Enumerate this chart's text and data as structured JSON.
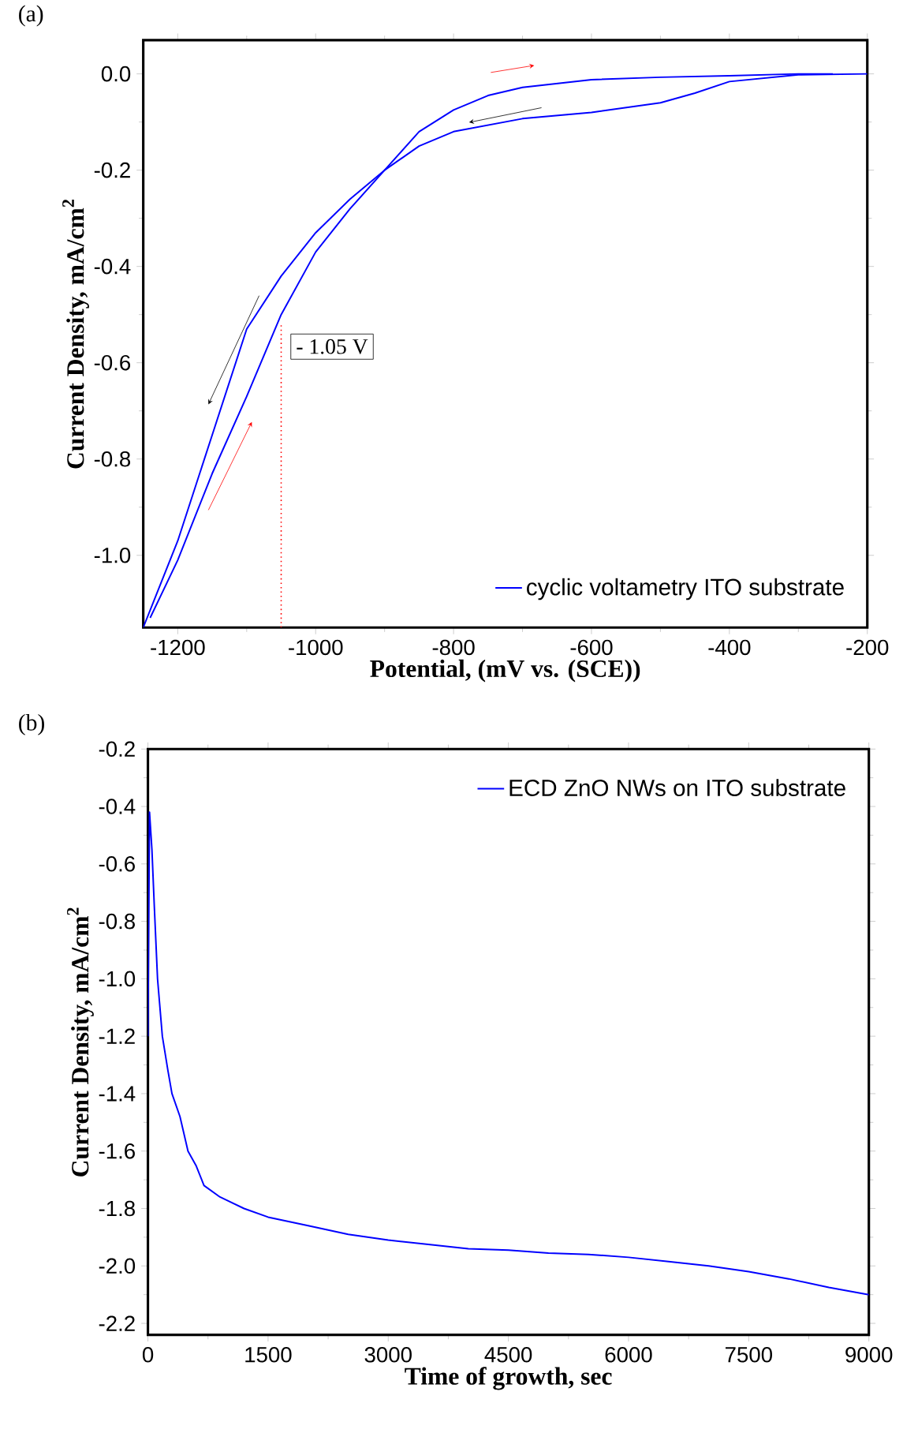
{
  "chart_data": [
    {
      "type": "line",
      "xlabel": "Potential, (mV vs. (SCE))",
      "ylabel": "Current Density, mA/cm$^{2}$",
      "legend": "bottom right",
      "annotations": [
        "(a)"
      ],
      "xlim": [
        -1250,
        -200
      ],
      "xticks": [
        -1200,
        -1000,
        -800,
        -600,
        -400,
        -200
      ],
      "ylim": [
        -1.15,
        0.07
      ],
      "yticks": [
        {
          "value": 0,
          "label": "0.0"
        },
        -0.2,
        -0.4,
        -0.6,
        -0.8,
        {
          "value": -1,
          "label": "-1.0"
        }
      ],
      "ref_lines": [
        {
          "axis": "x",
          "value": -1050,
          "label": "- 1.05 V",
          "color": "#ff0000",
          "line_style": "dotted"
        }
      ],
      "series": [
        {
          "name": "cyclic voltametry ITO substrate",
          "color": "#0000ff",
          "x": [
            -200,
            -300,
            -400,
            -450,
            -500,
            -600,
            -700,
            -800,
            -850,
            -900,
            -950,
            -1000,
            -1050,
            -1100,
            -1150,
            -1200,
            -1250
          ],
          "values": [
            0.0,
            -0.002,
            -0.016,
            -0.04,
            -0.06,
            -0.08,
            -0.093,
            -0.12,
            -0.15,
            -0.2,
            -0.26,
            -0.33,
            -0.42,
            -0.53,
            -0.75,
            -0.97,
            -1.15
          ]
        },
        {
          "color": "#0000ff",
          "x": [
            -1240,
            -1200,
            -1150,
            -1100,
            -1050,
            -1000,
            -950,
            -900,
            -850,
            -800,
            -750,
            -700,
            -600,
            -500,
            -400,
            -300,
            -250
          ],
          "values": [
            -1.13,
            -1.01,
            -0.83,
            -0.67,
            -0.5,
            -0.37,
            -0.28,
            -0.2,
            -0.12,
            -0.075,
            -0.045,
            -0.028,
            -0.012,
            -0.007,
            -0.004,
            0.0,
            0.0
          ]
        }
      ]
    },
    {
      "type": "line",
      "xlabel": "Time of growth, sec",
      "ylabel": "Current Density, mA/cm$^{2}$",
      "legend": "top right",
      "annotations": [
        "(b)"
      ],
      "xlim": [
        0,
        9000
      ],
      "xticks": [
        0,
        1500,
        3000,
        4500,
        6000,
        7500,
        9000
      ],
      "ylim": [
        -2.24,
        -0.2
      ],
      "yticks": [
        -0.2,
        -0.4,
        -0.6,
        -0.8,
        {
          "value": -1,
          "label": "-1.0"
        },
        -1.2,
        -1.4,
        -1.6,
        -1.8,
        {
          "value": -2,
          "label": "-2.0"
        },
        -2.2
      ],
      "series": [
        {
          "name": "ECD ZnO NWs on ITO substrate",
          "color": "#0000ff",
          "x": [
            0,
            20,
            50,
            80,
            120,
            180,
            250,
            300,
            400,
            500,
            600,
            700,
            900,
            1200,
            1500,
            2000,
            2500,
            3000,
            3500,
            4000,
            4500,
            5000,
            5500,
            6000,
            6500,
            7000,
            7500,
            8000,
            8500,
            9000
          ],
          "values": [
            -1.2,
            -0.42,
            -0.55,
            -0.75,
            -1.0,
            -1.2,
            -1.32,
            -1.4,
            -1.48,
            -1.6,
            -1.65,
            -1.72,
            -1.76,
            -1.8,
            -1.83,
            -1.86,
            -1.89,
            -1.91,
            -1.925,
            -1.94,
            -1.945,
            -1.955,
            -1.96,
            -1.97,
            -1.985,
            -2.0,
            -2.02,
            -2.045,
            -2.075,
            -2.1
          ]
        }
      ]
    }
  ]
}
